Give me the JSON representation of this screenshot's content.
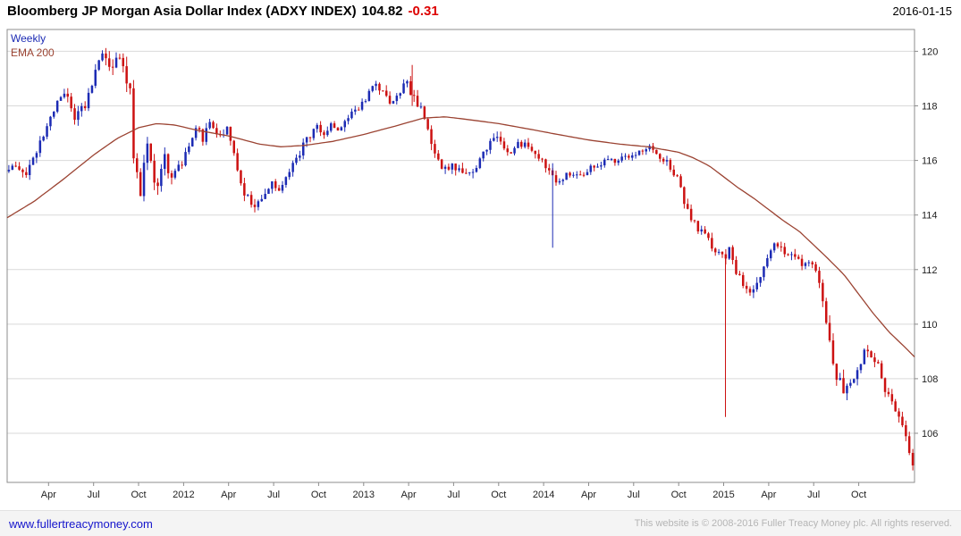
{
  "header": {
    "title": "Bloomberg JP Morgan Asia Dollar Index (ADXY INDEX)",
    "last_price": "104.82",
    "change": "-0.31",
    "date": "2016-01-15"
  },
  "legend": {
    "weekly": "Weekly",
    "ema": "EMA 200"
  },
  "footer": {
    "link": "www.fullertreacymoney.com",
    "copyright": "This website is © 2008-2016 Fuller Treacy Money plc. All rights reserved."
  },
  "colors": {
    "up": "#1c2bb4",
    "down": "#cc1111",
    "ema": "#9b4332",
    "grid": "#d9d9d9",
    "axis": "#8c8c8c",
    "tick_text": "#222222",
    "change": "#dd0000",
    "link": "#1515cc",
    "copyright": "#b5b5b5"
  },
  "chart_data": {
    "type": "candlestick",
    "title": "Bloomberg JP Morgan Asia Dollar Index (ADXY INDEX)",
    "frequency": "Weekly",
    "overlay": "EMA 200",
    "last_close": 104.82,
    "change": -0.31,
    "as_of_date": "2016-01-15",
    "x_unit": "decimal_year",
    "x_range": [
      2011.02,
      2016.06
    ],
    "y_range": [
      104.2,
      120.8
    ],
    "y_ticks": [
      106,
      108,
      110,
      112,
      114,
      116,
      118,
      120
    ],
    "x_ticks": [
      {
        "t": 2011.25,
        "label": "Apr"
      },
      {
        "t": 2011.5,
        "label": "Jul"
      },
      {
        "t": 2011.75,
        "label": "Oct"
      },
      {
        "t": 2012.0,
        "label": "2012"
      },
      {
        "t": 2012.25,
        "label": "Apr"
      },
      {
        "t": 2012.5,
        "label": "Jul"
      },
      {
        "t": 2012.75,
        "label": "Oct"
      },
      {
        "t": 2013.0,
        "label": "2013"
      },
      {
        "t": 2013.25,
        "label": "Apr"
      },
      {
        "t": 2013.5,
        "label": "Jul"
      },
      {
        "t": 2013.75,
        "label": "Oct"
      },
      {
        "t": 2014.0,
        "label": "2014"
      },
      {
        "t": 2014.25,
        "label": "Apr"
      },
      {
        "t": 2014.5,
        "label": "Jul"
      },
      {
        "t": 2014.75,
        "label": "Oct"
      },
      {
        "t": 2015.0,
        "label": "2015"
      },
      {
        "t": 2015.25,
        "label": "Apr"
      },
      {
        "t": 2015.5,
        "label": "Jul"
      },
      {
        "t": 2015.75,
        "label": "Oct"
      }
    ],
    "close_anchors": [
      [
        2011.02,
        115.6
      ],
      [
        2011.08,
        115.9
      ],
      [
        2011.14,
        115.5
      ],
      [
        2011.19,
        116.3
      ],
      [
        2011.25,
        117.1
      ],
      [
        2011.31,
        118.2
      ],
      [
        2011.36,
        118.5
      ],
      [
        2011.4,
        117.6
      ],
      [
        2011.46,
        118.0
      ],
      [
        2011.5,
        118.8
      ],
      [
        2011.54,
        119.6
      ],
      [
        2011.57,
        120.0
      ],
      [
        2011.6,
        119.2
      ],
      [
        2011.63,
        119.9
      ],
      [
        2011.67,
        119.4
      ],
      [
        2011.71,
        118.8
      ],
      [
        2011.73,
        116.2
      ],
      [
        2011.77,
        114.6
      ],
      [
        2011.79,
        116.0
      ],
      [
        2011.81,
        116.8
      ],
      [
        2011.84,
        115.2
      ],
      [
        2011.87,
        114.9
      ],
      [
        2011.9,
        116.4
      ],
      [
        2011.93,
        115.3
      ],
      [
        2011.96,
        115.6
      ],
      [
        2012.0,
        115.9
      ],
      [
        2012.04,
        116.5
      ],
      [
        2012.08,
        117.3
      ],
      [
        2012.12,
        116.8
      ],
      [
        2012.16,
        117.4
      ],
      [
        2012.21,
        116.9
      ],
      [
        2012.25,
        117.1
      ],
      [
        2012.29,
        116.3
      ],
      [
        2012.33,
        115.0
      ],
      [
        2012.38,
        114.5
      ],
      [
        2012.42,
        114.3
      ],
      [
        2012.46,
        114.8
      ],
      [
        2012.5,
        115.2
      ],
      [
        2012.54,
        115.0
      ],
      [
        2012.58,
        115.5
      ],
      [
        2012.63,
        115.9
      ],
      [
        2012.67,
        116.5
      ],
      [
        2012.71,
        116.9
      ],
      [
        2012.75,
        117.2
      ],
      [
        2012.79,
        117.0
      ],
      [
        2012.83,
        117.3
      ],
      [
        2012.88,
        117.1
      ],
      [
        2012.92,
        117.5
      ],
      [
        2012.96,
        117.8
      ],
      [
        2013.0,
        118.1
      ],
      [
        2013.04,
        118.5
      ],
      [
        2013.08,
        118.9
      ],
      [
        2013.12,
        118.4
      ],
      [
        2013.16,
        118.2
      ],
      [
        2013.2,
        118.5
      ],
      [
        2013.25,
        118.8
      ],
      [
        2013.29,
        118.3
      ],
      [
        2013.33,
        118.0
      ],
      [
        2013.37,
        117.2
      ],
      [
        2013.41,
        116.1
      ],
      [
        2013.45,
        115.6
      ],
      [
        2013.5,
        115.9
      ],
      [
        2013.54,
        115.7
      ],
      [
        2013.58,
        115.4
      ],
      [
        2013.62,
        115.6
      ],
      [
        2013.66,
        116.1
      ],
      [
        2013.7,
        116.5
      ],
      [
        2013.75,
        116.8
      ],
      [
        2013.79,
        116.5
      ],
      [
        2013.83,
        116.3
      ],
      [
        2013.87,
        116.6
      ],
      [
        2013.92,
        116.5
      ],
      [
        2013.96,
        116.3
      ],
      [
        2014.0,
        116.0
      ],
      [
        2014.04,
        115.6
      ],
      [
        2014.08,
        115.3
      ],
      [
        2014.12,
        115.4
      ],
      [
        2014.17,
        115.5
      ],
      [
        2014.21,
        115.4
      ],
      [
        2014.25,
        115.6
      ],
      [
        2014.29,
        115.8
      ],
      [
        2014.33,
        115.9
      ],
      [
        2014.38,
        116.0
      ],
      [
        2014.42,
        116.0
      ],
      [
        2014.46,
        116.1
      ],
      [
        2014.5,
        116.2
      ],
      [
        2014.54,
        116.3
      ],
      [
        2014.58,
        116.5
      ],
      [
        2014.62,
        116.4
      ],
      [
        2014.66,
        116.1
      ],
      [
        2014.7,
        115.9
      ],
      [
        2014.75,
        115.4
      ],
      [
        2014.79,
        114.5
      ],
      [
        2014.83,
        113.9
      ],
      [
        2014.87,
        113.5
      ],
      [
        2014.92,
        113.1
      ],
      [
        2014.96,
        112.7
      ],
      [
        2015.0,
        112.4
      ],
      [
        2015.04,
        112.7
      ],
      [
        2015.08,
        111.9
      ],
      [
        2015.12,
        111.5
      ],
      [
        2015.16,
        111.2
      ],
      [
        2015.2,
        111.6
      ],
      [
        2015.25,
        112.5
      ],
      [
        2015.29,
        113.0
      ],
      [
        2015.33,
        112.7
      ],
      [
        2015.37,
        112.5
      ],
      [
        2015.42,
        112.3
      ],
      [
        2015.46,
        112.2
      ],
      [
        2015.5,
        112.1
      ],
      [
        2015.54,
        111.7
      ],
      [
        2015.58,
        110.2
      ],
      [
        2015.62,
        108.4
      ],
      [
        2015.66,
        107.8
      ],
      [
        2015.7,
        107.5
      ],
      [
        2015.75,
        108.1
      ],
      [
        2015.79,
        109.2
      ],
      [
        2015.83,
        108.9
      ],
      [
        2015.87,
        108.4
      ],
      [
        2015.92,
        107.4
      ],
      [
        2015.96,
        106.9
      ],
      [
        2016.0,
        106.5
      ],
      [
        2016.03,
        105.6
      ],
      [
        2016.06,
        104.82
      ]
    ],
    "ema_anchors": [
      [
        2011.02,
        113.9
      ],
      [
        2011.17,
        114.5
      ],
      [
        2011.33,
        115.3
      ],
      [
        2011.5,
        116.2
      ],
      [
        2011.63,
        116.8
      ],
      [
        2011.75,
        117.2
      ],
      [
        2011.85,
        117.35
      ],
      [
        2011.95,
        117.3
      ],
      [
        2012.08,
        117.1
      ],
      [
        2012.25,
        116.9
      ],
      [
        2012.42,
        116.6
      ],
      [
        2012.54,
        116.5
      ],
      [
        2012.67,
        116.55
      ],
      [
        2012.83,
        116.7
      ],
      [
        2013.0,
        116.95
      ],
      [
        2013.17,
        117.25
      ],
      [
        2013.33,
        117.55
      ],
      [
        2013.45,
        117.6
      ],
      [
        2013.58,
        117.5
      ],
      [
        2013.75,
        117.35
      ],
      [
        2013.92,
        117.15
      ],
      [
        2014.08,
        116.95
      ],
      [
        2014.25,
        116.75
      ],
      [
        2014.42,
        116.6
      ],
      [
        2014.58,
        116.5
      ],
      [
        2014.75,
        116.3
      ],
      [
        2014.83,
        116.1
      ],
      [
        2014.92,
        115.8
      ],
      [
        2015.0,
        115.4
      ],
      [
        2015.08,
        115.0
      ],
      [
        2015.17,
        114.6
      ],
      [
        2015.25,
        114.2
      ],
      [
        2015.33,
        113.8
      ],
      [
        2015.42,
        113.4
      ],
      [
        2015.5,
        112.9
      ],
      [
        2015.58,
        112.4
      ],
      [
        2015.67,
        111.8
      ],
      [
        2015.75,
        111.1
      ],
      [
        2015.83,
        110.4
      ],
      [
        2015.92,
        109.7
      ],
      [
        2016.0,
        109.2
      ],
      [
        2016.06,
        108.8
      ]
    ],
    "vol_anchors": [
      [
        2011.02,
        0.28
      ],
      [
        2011.35,
        0.3
      ],
      [
        2011.55,
        0.38
      ],
      [
        2011.68,
        0.5
      ],
      [
        2011.8,
        0.55
      ],
      [
        2011.95,
        0.42
      ],
      [
        2012.15,
        0.3
      ],
      [
        2012.35,
        0.32
      ],
      [
        2012.6,
        0.26
      ],
      [
        2012.85,
        0.24
      ],
      [
        2013.1,
        0.28
      ],
      [
        2013.3,
        0.38
      ],
      [
        2013.5,
        0.34
      ],
      [
        2013.75,
        0.28
      ],
      [
        2014.0,
        0.26
      ],
      [
        2014.3,
        0.2
      ],
      [
        2014.6,
        0.2
      ],
      [
        2014.85,
        0.3
      ],
      [
        2015.05,
        0.34
      ],
      [
        2015.3,
        0.28
      ],
      [
        2015.55,
        0.35
      ],
      [
        2015.65,
        0.5
      ],
      [
        2015.8,
        0.35
      ],
      [
        2016.06,
        0.32
      ]
    ],
    "spikes": [
      {
        "t": 2014.05,
        "top": 115.9,
        "bottom": 112.8,
        "dir": "up"
      },
      {
        "t": 2015.01,
        "top": 112.5,
        "bottom": 106.6,
        "dir": "down"
      },
      {
        "t": 2013.27,
        "top": 119.5,
        "bottom": 118.0,
        "dir": "down"
      }
    ]
  }
}
